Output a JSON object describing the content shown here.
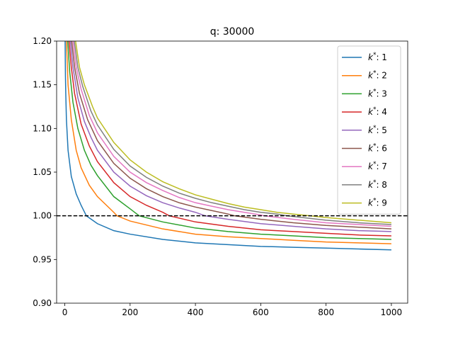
{
  "chart_data": {
    "type": "line",
    "title": "q: 30000",
    "xlabel": "",
    "ylabel": "",
    "xlim": [
      -25,
      1050
    ],
    "ylim": [
      0.9,
      1.2
    ],
    "xticks": [
      0,
      200,
      400,
      600,
      800,
      1000
    ],
    "yticks": [
      0.9,
      0.95,
      1.0,
      1.05,
      1.1,
      1.15,
      1.2
    ],
    "grid": false,
    "legend_position": "top-right",
    "reference_line": {
      "y": 1.0,
      "style": "dashed",
      "color": "#000000"
    },
    "series": [
      {
        "name": "k*: 1",
        "legend_base": "k",
        "legend_sup": "*",
        "legend_value": ": 1",
        "color": "#1f77b4",
        "points": [
          [
            1,
            1.2
          ],
          [
            2,
            1.16
          ],
          [
            3,
            1.14
          ],
          [
            5,
            1.11
          ],
          [
            10,
            1.075
          ],
          [
            20,
            1.045
          ],
          [
            35,
            1.025
          ],
          [
            50,
            1.012
          ],
          [
            66,
            1.0
          ],
          [
            100,
            0.991
          ],
          [
            150,
            0.983
          ],
          [
            200,
            0.979
          ],
          [
            300,
            0.973
          ],
          [
            400,
            0.969
          ],
          [
            500,
            0.967
          ],
          [
            600,
            0.965
          ],
          [
            700,
            0.964
          ],
          [
            800,
            0.963
          ],
          [
            900,
            0.962
          ],
          [
            1000,
            0.961
          ]
        ]
      },
      {
        "name": "k*: 2",
        "legend_base": "k",
        "legend_sup": "*",
        "legend_value": ": 2",
        "color": "#ff7f0e",
        "points": [
          [
            5,
            1.2
          ],
          [
            10,
            1.15
          ],
          [
            20,
            1.11
          ],
          [
            35,
            1.075
          ],
          [
            50,
            1.055
          ],
          [
            75,
            1.035
          ],
          [
            100,
            1.022
          ],
          [
            150,
            1.004
          ],
          [
            160,
            1.0
          ],
          [
            200,
            0.994
          ],
          [
            300,
            0.985
          ],
          [
            400,
            0.979
          ],
          [
            500,
            0.976
          ],
          [
            600,
            0.974
          ],
          [
            700,
            0.972
          ],
          [
            800,
            0.97
          ],
          [
            900,
            0.969
          ],
          [
            1000,
            0.968
          ]
        ]
      },
      {
        "name": "k*: 3",
        "legend_base": "k",
        "legend_sup": "*",
        "legend_value": ": 3",
        "color": "#2ca02c",
        "points": [
          [
            9,
            1.2
          ],
          [
            15,
            1.165
          ],
          [
            25,
            1.13
          ],
          [
            40,
            1.1
          ],
          [
            60,
            1.075
          ],
          [
            80,
            1.058
          ],
          [
            100,
            1.046
          ],
          [
            150,
            1.022
          ],
          [
            200,
            1.008
          ],
          [
            228,
            1.0
          ],
          [
            300,
            0.993
          ],
          [
            400,
            0.986
          ],
          [
            500,
            0.982
          ],
          [
            600,
            0.979
          ],
          [
            700,
            0.977
          ],
          [
            800,
            0.975
          ],
          [
            900,
            0.974
          ],
          [
            1000,
            0.973
          ]
        ]
      },
      {
        "name": "k*: 4",
        "legend_base": "k",
        "legend_sup": "*",
        "legend_value": ": 4",
        "color": "#d62728",
        "points": [
          [
            13,
            1.2
          ],
          [
            20,
            1.17
          ],
          [
            30,
            1.14
          ],
          [
            50,
            1.105
          ],
          [
            75,
            1.08
          ],
          [
            100,
            1.062
          ],
          [
            150,
            1.038
          ],
          [
            200,
            1.022
          ],
          [
            250,
            1.012
          ],
          [
            300,
            1.004
          ],
          [
            320,
            1.0
          ],
          [
            400,
            0.993
          ],
          [
            500,
            0.988
          ],
          [
            600,
            0.984
          ],
          [
            700,
            0.982
          ],
          [
            800,
            0.98
          ],
          [
            900,
            0.978
          ],
          [
            1000,
            0.977
          ]
        ]
      },
      {
        "name": "k*: 5",
        "legend_base": "k",
        "legend_sup": "*",
        "legend_value": ": 5",
        "color": "#9467bd",
        "points": [
          [
            17,
            1.2
          ],
          [
            25,
            1.17
          ],
          [
            40,
            1.135
          ],
          [
            60,
            1.108
          ],
          [
            80,
            1.09
          ],
          [
            100,
            1.075
          ],
          [
            150,
            1.05
          ],
          [
            200,
            1.034
          ],
          [
            250,
            1.023
          ],
          [
            300,
            1.015
          ],
          [
            350,
            1.009
          ],
          [
            400,
            1.004
          ],
          [
            430,
            1.0
          ],
          [
            500,
            0.996
          ],
          [
            600,
            0.991
          ],
          [
            700,
            0.988
          ],
          [
            800,
            0.985
          ],
          [
            900,
            0.983
          ],
          [
            1000,
            0.982
          ]
        ]
      },
      {
        "name": "k*: 6",
        "legend_base": "k",
        "legend_sup": "*",
        "legend_value": ": 6",
        "color": "#8c564b",
        "points": [
          [
            21,
            1.2
          ],
          [
            30,
            1.17
          ],
          [
            45,
            1.14
          ],
          [
            70,
            1.11
          ],
          [
            100,
            1.086
          ],
          [
            150,
            1.06
          ],
          [
            200,
            1.043
          ],
          [
            250,
            1.031
          ],
          [
            300,
            1.022
          ],
          [
            350,
            1.015
          ],
          [
            400,
            1.01
          ],
          [
            450,
            1.006
          ],
          [
            500,
            1.002
          ],
          [
            520,
            1.0
          ],
          [
            600,
            0.996
          ],
          [
            700,
            0.992
          ],
          [
            800,
            0.989
          ],
          [
            900,
            0.987
          ],
          [
            1000,
            0.985
          ]
        ]
      },
      {
        "name": "k*: 7",
        "legend_base": "k",
        "legend_sup": "*",
        "legend_value": ": 7",
        "color": "#e377c2",
        "points": [
          [
            25,
            1.2
          ],
          [
            35,
            1.17
          ],
          [
            50,
            1.145
          ],
          [
            75,
            1.115
          ],
          [
            100,
            1.095
          ],
          [
            150,
            1.068
          ],
          [
            200,
            1.05
          ],
          [
            250,
            1.038
          ],
          [
            300,
            1.029
          ],
          [
            350,
            1.021
          ],
          [
            400,
            1.015
          ],
          [
            450,
            1.011
          ],
          [
            500,
            1.007
          ],
          [
            550,
            1.004
          ],
          [
            600,
            1.001
          ],
          [
            610,
            1.0
          ],
          [
            700,
            0.996
          ],
          [
            800,
            0.992
          ],
          [
            900,
            0.99
          ],
          [
            1000,
            0.988
          ]
        ]
      },
      {
        "name": "k*: 8",
        "legend_base": "k",
        "legend_sup": "*",
        "legend_value": ": 8",
        "color": "#7f7f7f",
        "points": [
          [
            29,
            1.2
          ],
          [
            40,
            1.17
          ],
          [
            55,
            1.148
          ],
          [
            80,
            1.12
          ],
          [
            100,
            1.104
          ],
          [
            150,
            1.076
          ],
          [
            200,
            1.057
          ],
          [
            250,
            1.044
          ],
          [
            300,
            1.034
          ],
          [
            350,
            1.026
          ],
          [
            400,
            1.02
          ],
          [
            450,
            1.015
          ],
          [
            500,
            1.011
          ],
          [
            550,
            1.007
          ],
          [
            600,
            1.004
          ],
          [
            650,
            1.002
          ],
          [
            680,
            1.0
          ],
          [
            800,
            0.995
          ],
          [
            900,
            0.992
          ],
          [
            1000,
            0.99
          ]
        ]
      },
      {
        "name": "k*: 9",
        "legend_base": "k",
        "legend_sup": "*",
        "legend_value": ": 9",
        "color": "#bcbd22",
        "points": [
          [
            33,
            1.2
          ],
          [
            45,
            1.17
          ],
          [
            60,
            1.15
          ],
          [
            85,
            1.125
          ],
          [
            100,
            1.112
          ],
          [
            150,
            1.084
          ],
          [
            200,
            1.064
          ],
          [
            250,
            1.05
          ],
          [
            300,
            1.039
          ],
          [
            350,
            1.031
          ],
          [
            400,
            1.024
          ],
          [
            450,
            1.019
          ],
          [
            500,
            1.014
          ],
          [
            550,
            1.01
          ],
          [
            600,
            1.007
          ],
          [
            650,
            1.004
          ],
          [
            700,
            1.002
          ],
          [
            750,
            1.0
          ],
          [
            800,
            0.998
          ],
          [
            900,
            0.995
          ],
          [
            1000,
            0.992
          ]
        ]
      }
    ]
  }
}
